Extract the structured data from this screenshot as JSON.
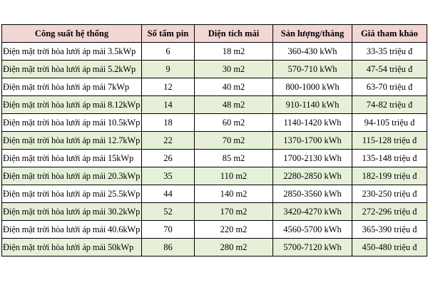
{
  "table": {
    "headers": [
      "Công suất hệ thống",
      "Số tấm pin",
      "Diện tích mái",
      "Sản lượng/tháng",
      "Giá tham khảo"
    ],
    "rows": [
      [
        "Điện mặt trời hòa lưới áp mái 3.5kWp",
        "6",
        "18 m2",
        "360-430 kWh",
        "33-35 triệu đ"
      ],
      [
        "Điện mặt trời hòa lưới áp mái 5.2kWp",
        "9",
        "30 m2",
        "570-710 kWh",
        "47-54 triệu đ"
      ],
      [
        "Điện mặt trời hòa lưới áp mái 7kWp",
        "12",
        "40 m2",
        "800-1000 kWh",
        "63-70 triệu đ"
      ],
      [
        "Điện mặt trời hòa lưới áp mái 8.12kWp",
        "14",
        "48 m2",
        "910-1140 kWh",
        "74-82 triệu đ"
      ],
      [
        "Điện mặt trời hòa lưới áp mái 10.5kWp",
        "18",
        "60 m2",
        "1140-1420 kWh",
        "94-105 triệu đ"
      ],
      [
        "Điện mặt trời hòa lưới áp mái 12.7kWp",
        "22",
        "70 m2",
        "1370-1700 kWh",
        "115-128 triệu đ"
      ],
      [
        "Điện mặt trời hòa lưới áp mái 15kWp",
        "26",
        "85 m2",
        "1700-2130 kWh",
        "135-148 triệu đ"
      ],
      [
        "Điện mặt trời hòa lưới áp mái 20.3kWp",
        "35",
        "110 m2",
        "2280-2850 kWh",
        "182-199 triệu đ"
      ],
      [
        "Điện mặt trời hòa lưới áp mái 25.5kWp",
        "44",
        "140 m2",
        "2850-3560 kWh",
        "230-250 triệu đ"
      ],
      [
        "Điện mặt trời hòa lưới áp mái 30.2kWp",
        "52",
        "170 m2",
        "3420-4270 kWh",
        "272-296 triệu đ"
      ],
      [
        "Điện mặt trời hòa lưới áp mái 40.6kWp",
        "70",
        "220 m2",
        "4560-5700 kWh",
        "365-390 triệu đ"
      ],
      [
        "Điện mặt trời hòa lưới áp mái 50kWp",
        "86",
        "280 m2",
        "5700-7120 kWh",
        "450-480 triệu đ"
      ]
    ]
  },
  "colors": {
    "header_bg": "#f2d6d4",
    "alt_row_bg": "#e6f0d8",
    "border": "#000000"
  }
}
